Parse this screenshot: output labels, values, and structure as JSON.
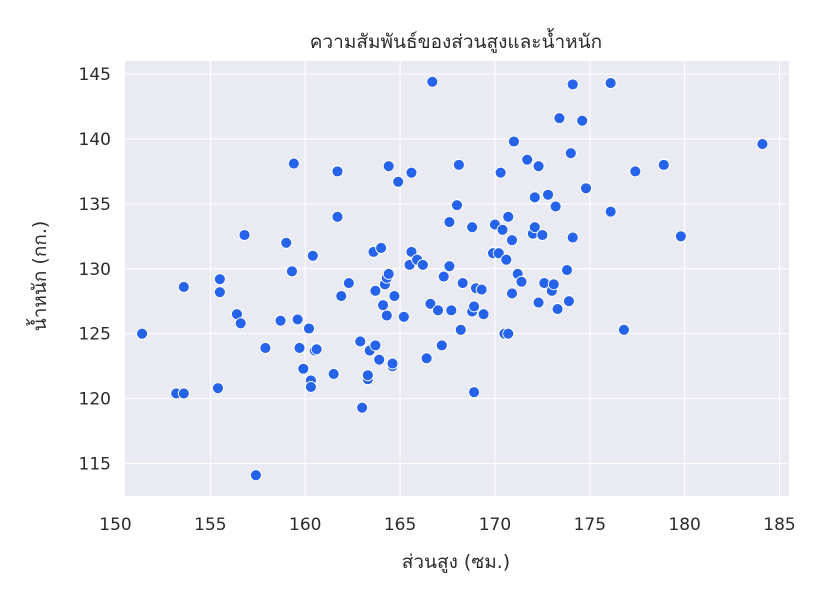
{
  "chart_data": {
    "type": "scatter",
    "title": "ความสัมพันธ์ของส่วนสูงและน้ำหนัก",
    "xlabel": "ส่วนสูง (ซม.)",
    "ylabel": "น้ำหนัก (กก.)",
    "xlim": [
      150.5,
      185.5
    ],
    "ylim": [
      112.5,
      146.0
    ],
    "x_ticks": [
      150,
      155,
      160,
      165,
      170,
      175,
      180,
      185
    ],
    "y_ticks": [
      115,
      120,
      125,
      130,
      135,
      140,
      145
    ],
    "grid": true,
    "point_color": "#2563eb",
    "background_color": "#eaeaf2",
    "points": [
      [
        151.4,
        125.0
      ],
      [
        153.2,
        120.4
      ],
      [
        153.6,
        120.4
      ],
      [
        153.6,
        128.6
      ],
      [
        155.4,
        120.8
      ],
      [
        155.5,
        129.2
      ],
      [
        155.5,
        128.2
      ],
      [
        156.4,
        126.5
      ],
      [
        156.6,
        125.8
      ],
      [
        156.8,
        132.6
      ],
      [
        157.4,
        114.1
      ],
      [
        157.9,
        123.9
      ],
      [
        158.7,
        126.0
      ],
      [
        159.0,
        132.0
      ],
      [
        159.3,
        129.8
      ],
      [
        159.4,
        138.1
      ],
      [
        159.6,
        126.1
      ],
      [
        159.7,
        123.9
      ],
      [
        159.9,
        122.3
      ],
      [
        160.2,
        125.4
      ],
      [
        160.3,
        121.4
      ],
      [
        160.3,
        120.9
      ],
      [
        160.4,
        131.0
      ],
      [
        160.5,
        123.7
      ],
      [
        160.6,
        123.8
      ],
      [
        161.5,
        121.9
      ],
      [
        161.7,
        137.5
      ],
      [
        161.7,
        134.0
      ],
      [
        161.9,
        127.9
      ],
      [
        162.3,
        128.9
      ],
      [
        162.9,
        124.4
      ],
      [
        163.0,
        119.3
      ],
      [
        163.3,
        121.5
      ],
      [
        163.3,
        121.8
      ],
      [
        163.4,
        123.7
      ],
      [
        163.6,
        131.3
      ],
      [
        163.7,
        124.1
      ],
      [
        163.7,
        128.3
      ],
      [
        163.9,
        123.0
      ],
      [
        164.0,
        131.6
      ],
      [
        164.1,
        127.2
      ],
      [
        164.2,
        128.8
      ],
      [
        164.3,
        126.4
      ],
      [
        164.3,
        129.3
      ],
      [
        164.4,
        137.9
      ],
      [
        164.4,
        129.6
      ],
      [
        164.6,
        122.5
      ],
      [
        164.6,
        122.7
      ],
      [
        164.7,
        127.9
      ],
      [
        164.9,
        136.7
      ],
      [
        165.2,
        126.3
      ],
      [
        165.5,
        130.3
      ],
      [
        165.6,
        137.4
      ],
      [
        165.6,
        131.3
      ],
      [
        165.9,
        130.7
      ],
      [
        166.2,
        130.3
      ],
      [
        166.4,
        123.1
      ],
      [
        166.6,
        127.3
      ],
      [
        166.7,
        144.4
      ],
      [
        167.0,
        126.8
      ],
      [
        167.2,
        124.1
      ],
      [
        167.3,
        129.4
      ],
      [
        167.6,
        133.6
      ],
      [
        167.6,
        130.2
      ],
      [
        167.7,
        126.8
      ],
      [
        168.0,
        134.9
      ],
      [
        168.1,
        138.0
      ],
      [
        168.2,
        125.3
      ],
      [
        168.3,
        128.9
      ],
      [
        168.8,
        133.2
      ],
      [
        168.8,
        126.7
      ],
      [
        168.9,
        120.5
      ],
      [
        168.9,
        127.1
      ],
      [
        169.0,
        128.5
      ],
      [
        169.3,
        128.4
      ],
      [
        169.4,
        126.5
      ],
      [
        169.9,
        131.2
      ],
      [
        170.0,
        133.4
      ],
      [
        170.2,
        131.2
      ],
      [
        170.3,
        137.4
      ],
      [
        170.4,
        133.0
      ],
      [
        170.5,
        125.0
      ],
      [
        170.6,
        130.7
      ],
      [
        170.7,
        125.0
      ],
      [
        170.7,
        134.0
      ],
      [
        170.9,
        132.2
      ],
      [
        170.9,
        128.1
      ],
      [
        171.0,
        139.8
      ],
      [
        171.2,
        129.6
      ],
      [
        171.4,
        129.0
      ],
      [
        171.7,
        138.4
      ],
      [
        172.0,
        132.7
      ],
      [
        172.1,
        133.2
      ],
      [
        172.1,
        135.5
      ],
      [
        172.3,
        137.9
      ],
      [
        172.3,
        127.4
      ],
      [
        172.5,
        132.6
      ],
      [
        172.6,
        128.9
      ],
      [
        172.8,
        135.7
      ],
      [
        173.0,
        128.3
      ],
      [
        173.1,
        128.8
      ],
      [
        173.2,
        134.8
      ],
      [
        173.3,
        126.9
      ],
      [
        173.4,
        141.6
      ],
      [
        173.8,
        129.9
      ],
      [
        173.9,
        127.5
      ],
      [
        174.0,
        138.9
      ],
      [
        174.1,
        144.2
      ],
      [
        174.1,
        132.4
      ],
      [
        174.6,
        141.4
      ],
      [
        174.8,
        136.2
      ],
      [
        176.1,
        144.3
      ],
      [
        176.1,
        134.4
      ],
      [
        176.8,
        125.3
      ],
      [
        177.4,
        137.5
      ],
      [
        178.9,
        138.0
      ],
      [
        179.8,
        132.5
      ],
      [
        184.1,
        139.6
      ]
    ]
  }
}
